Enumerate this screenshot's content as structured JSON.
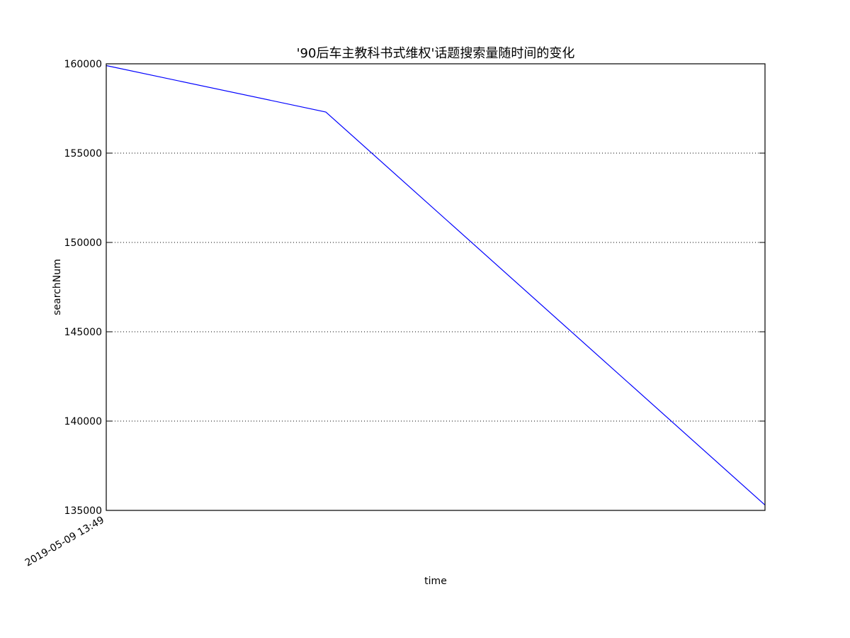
{
  "chart_data": {
    "type": "line",
    "title": "'90后车主教科书式维权'话题搜索量随时间的变化",
    "xlabel": "time",
    "ylabel": "searchNum",
    "x_tick_labels": [
      "2019-05-09 13:49"
    ],
    "ylim": [
      135000,
      160000
    ],
    "y_ticks": [
      135000,
      140000,
      145000,
      150000,
      155000,
      160000
    ],
    "grid": "y-dotted",
    "series": [
      {
        "color": "#0000ff",
        "points": [
          {
            "x": 0,
            "y": 159900
          },
          {
            "x": 1,
            "y": 157300
          },
          {
            "x": 3,
            "y": 135300
          }
        ]
      }
    ],
    "xlim": [
      0,
      3
    ]
  }
}
